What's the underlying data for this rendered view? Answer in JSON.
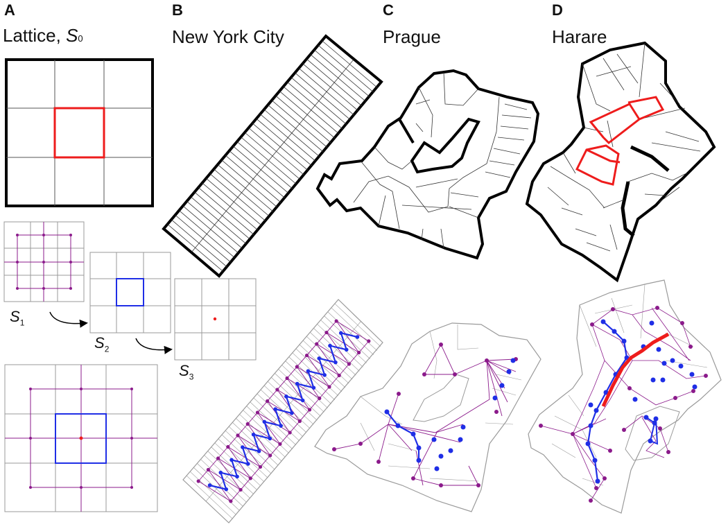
{
  "panels": {
    "a": {
      "letter": "A",
      "title": "Lattice, ",
      "title_symbol": "S",
      "title_symbol_sub": "0"
    },
    "b": {
      "letter": "B",
      "title": "New York City"
    },
    "c": {
      "letter": "C",
      "title": "Prague"
    },
    "d": {
      "letter": "D",
      "title": "Harare"
    }
  },
  "stages": [
    {
      "symbol": "S",
      "sub": "1"
    },
    {
      "symbol": "S",
      "sub": "2"
    },
    {
      "symbol": "S",
      "sub": "3"
    }
  ],
  "colors": {
    "boundary": "#000000",
    "thin_line": "#555555",
    "gray_line": "#9a9a9a",
    "highlight": "#ee1c1c",
    "level1": "#8b1a8b",
    "level2": "#1f2ee6",
    "level3": "#ee1c1c"
  }
}
